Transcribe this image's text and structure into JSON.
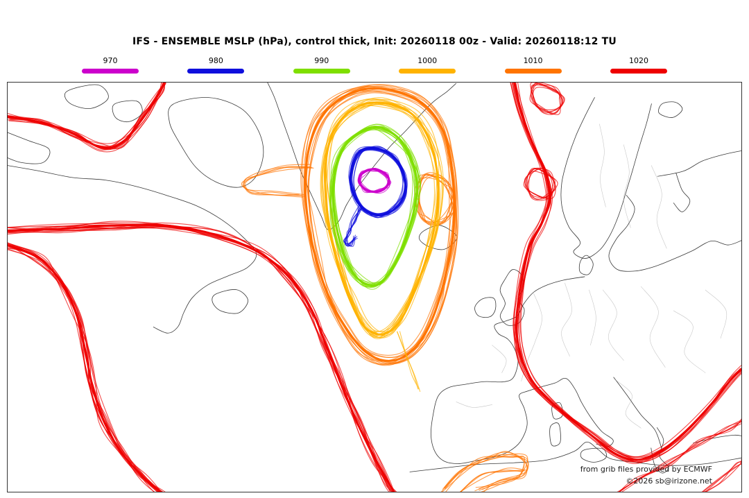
{
  "header": {
    "title": "IFS - ENSEMBLE MSLP (hPa), control thick, Init: 20260118 00z - Valid: 20260118:12 TU"
  },
  "legend": {
    "items": [
      {
        "label": "970",
        "color": "#cc00cc"
      },
      {
        "label": "980",
        "color": "#0f0fdd"
      },
      {
        "label": "990",
        "color": "#7fdf00"
      },
      {
        "label": "1000",
        "color": "#ffb300"
      },
      {
        "label": "1010",
        "color": "#ff7400"
      },
      {
        "label": "1020",
        "color": "#ee0000"
      }
    ]
  },
  "map": {
    "credits": {
      "line1": "from grib files provided by ECMWF",
      "line2": "©2026 sb@irizone.net"
    }
  }
}
